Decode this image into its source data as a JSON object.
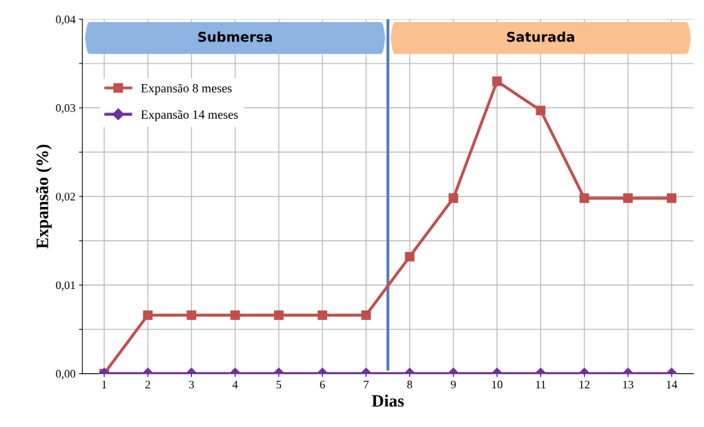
{
  "chart_data": {
    "type": "line",
    "xlabel": "Dias",
    "ylabel": "Expansão (%)",
    "x": [
      1,
      2,
      3,
      4,
      5,
      6,
      7,
      8,
      9,
      10,
      11,
      12,
      13,
      14
    ],
    "series": [
      {
        "name": "Expansão 8 meses",
        "color": "#c0504d",
        "marker": "square",
        "values": [
          0,
          0.0066,
          0.0066,
          0.0066,
          0.0066,
          0.0066,
          0.0066,
          0.0132,
          0.0198,
          0.033,
          0.0297,
          0.0198,
          0.0198,
          0.0198
        ]
      },
      {
        "name": "Expansão 14 meses",
        "color": "#7030a0",
        "marker": "diamond",
        "values": [
          0,
          0,
          0,
          0,
          0,
          0,
          0,
          0,
          0,
          0,
          0,
          0,
          0,
          0
        ]
      }
    ],
    "xlim": [
      0.5,
      14.5
    ],
    "xticks": [
      1,
      2,
      3,
      4,
      5,
      6,
      7,
      8,
      9,
      10,
      11,
      12,
      13,
      14
    ],
    "ylim": [
      0,
      0.04
    ],
    "yticks": [
      {
        "value": 0,
        "label": "0,00"
      },
      {
        "value": 0.005,
        "label": null
      },
      {
        "value": 0.01,
        "label": "0,01"
      },
      {
        "value": 0.015,
        "label": null
      },
      {
        "value": 0.02,
        "label": "0,02"
      },
      {
        "value": 0.025,
        "label": null
      },
      {
        "value": 0.03,
        "label": "0,03"
      },
      {
        "value": 0.035,
        "label": null
      },
      {
        "value": 0.04,
        "label": "0,04"
      }
    ],
    "ref_lines": [
      {
        "axis": "x",
        "value": 7.5,
        "label": null,
        "color": "#4f81bd"
      }
    ],
    "annotations": [
      "Submersa",
      "Saturada"
    ],
    "grid": true,
    "legend": "top left",
    "line_style": "solid"
  }
}
